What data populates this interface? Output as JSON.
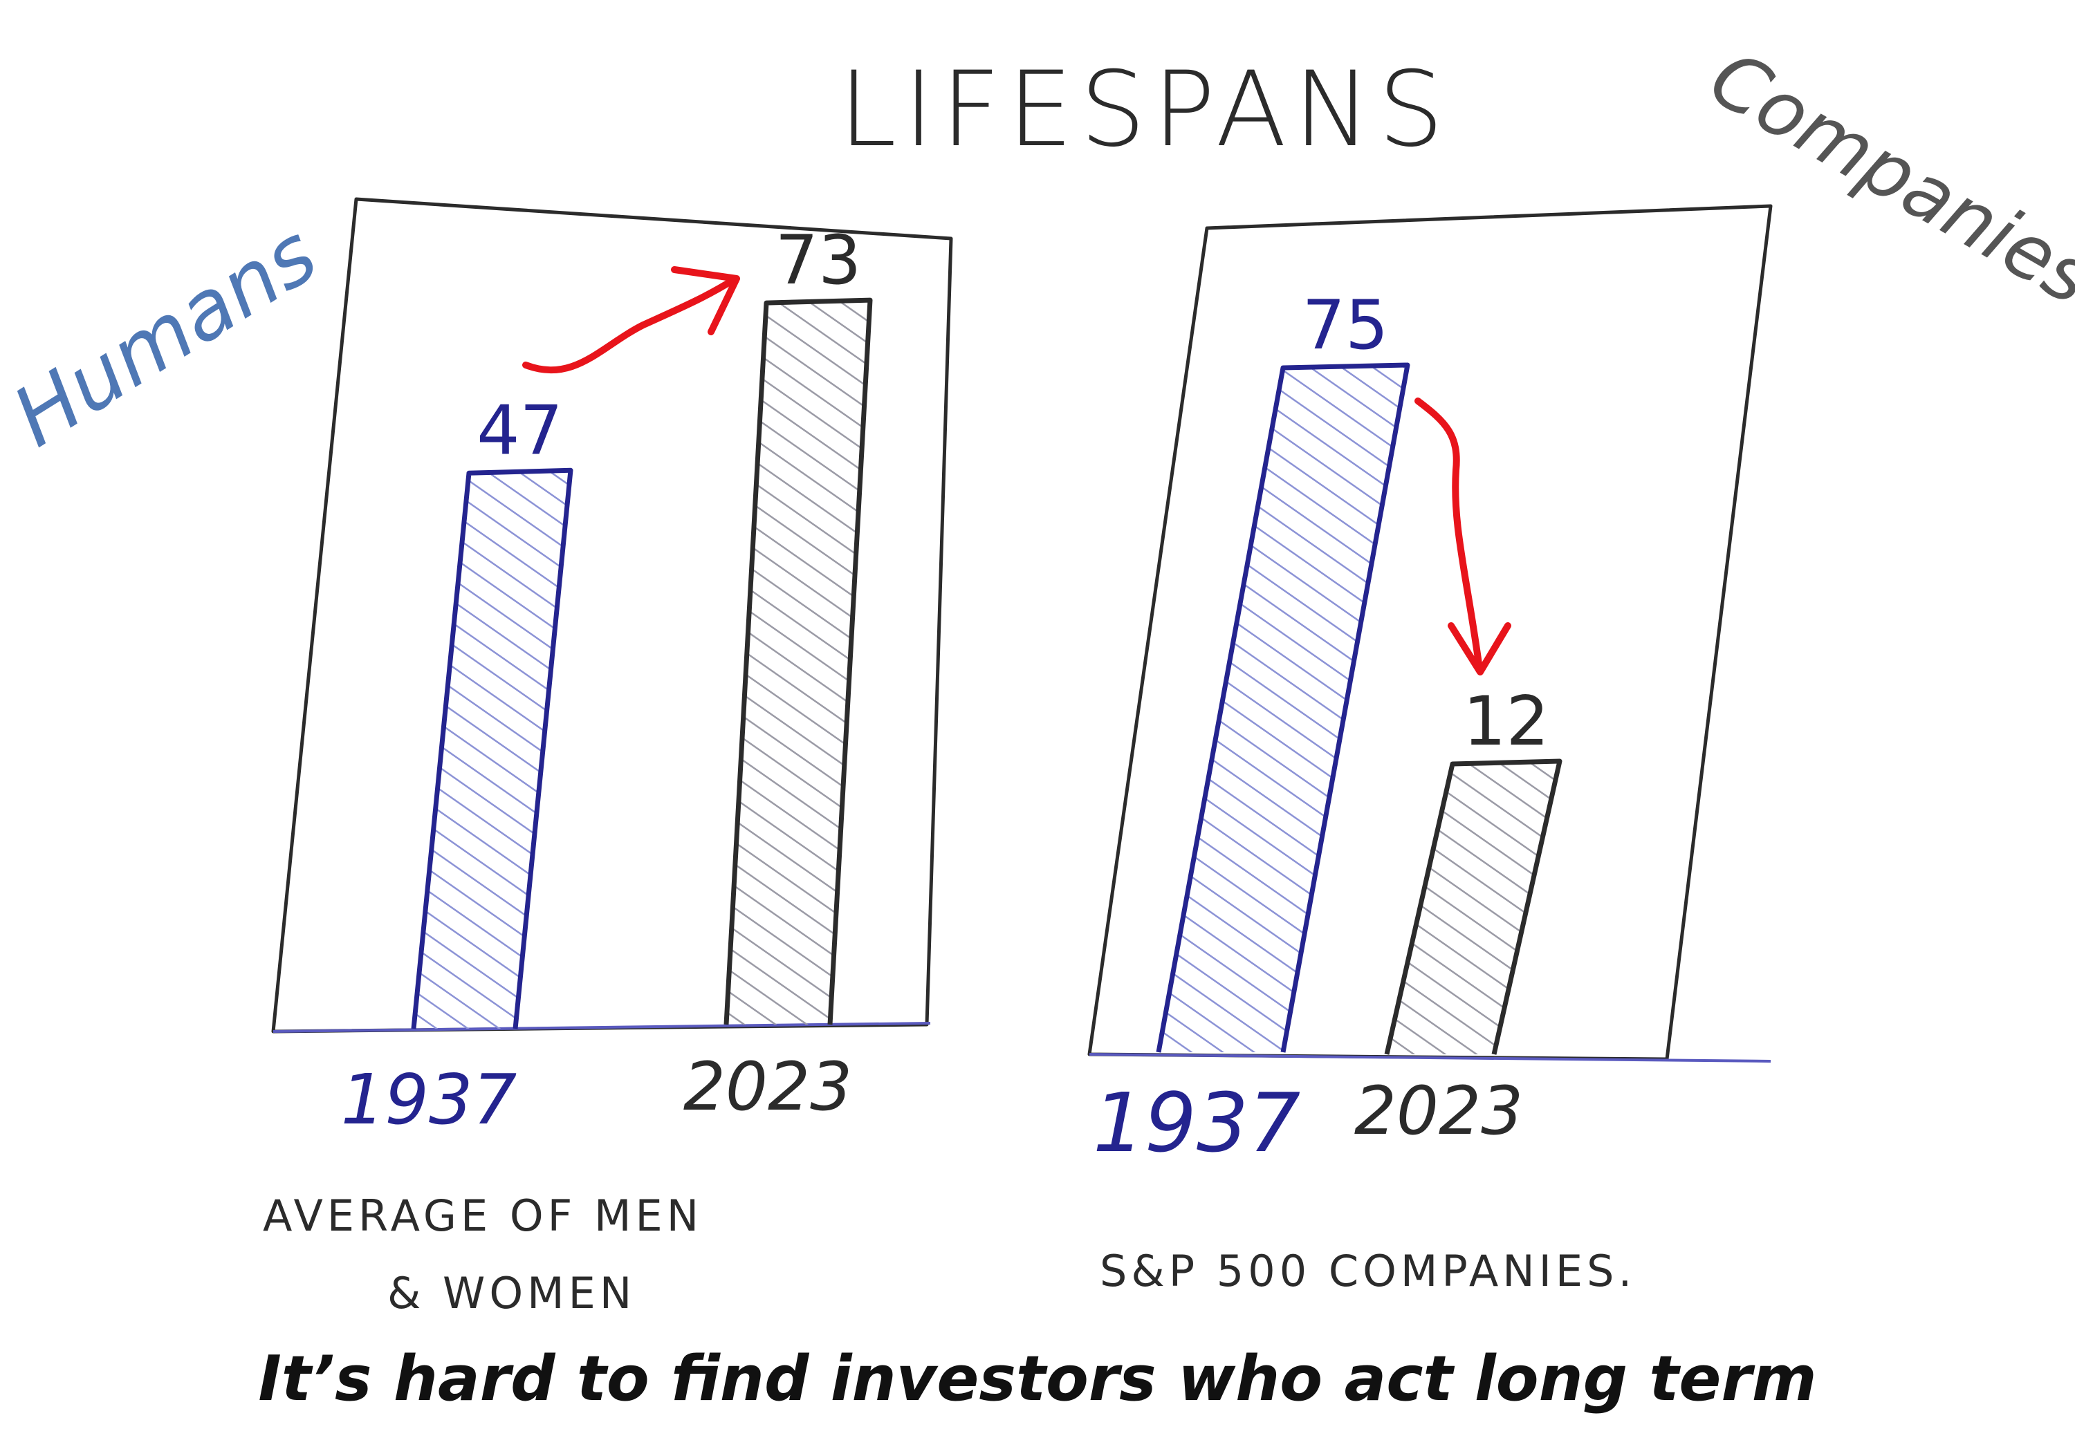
{
  "title": "LIFESPANS",
  "footer_text": "It’s hard to find investors who act long term",
  "chart_data": [
    {
      "type": "bar",
      "side_label": "Humans",
      "categories": [
        "1937",
        "2023"
      ],
      "values": [
        47,
        73
      ],
      "caption_lines": [
        "AVERAGE OF MEN",
        "& WOMEN"
      ],
      "ylim": [
        0,
        100
      ]
    },
    {
      "type": "bar",
      "side_label": "Companies",
      "categories": [
        "1937",
        "2023"
      ],
      "values": [
        75,
        12
      ],
      "caption_lines": [
        "S&P 500 COMPANIES."
      ],
      "ylim": [
        0,
        100
      ]
    }
  ],
  "colors": {
    "ink": "#2b2b2b",
    "blue_ink": "#24248f",
    "humans_label": "#4f78b5",
    "companies_label": "#555555",
    "arrow": "#e8141b",
    "axis": "#5a5abf",
    "blue_fill": "#9aa0d8",
    "gray_fill": "#a9a9b4"
  }
}
